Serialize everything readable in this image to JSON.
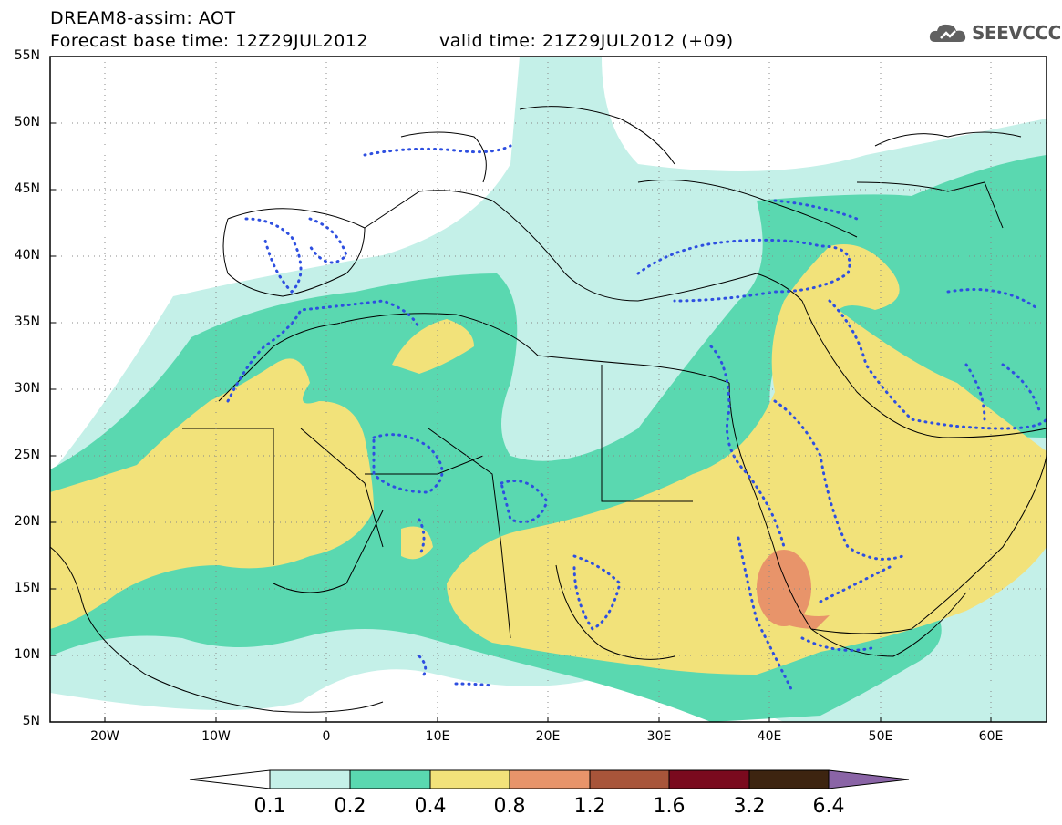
{
  "header": {
    "title": "DREAM8-assim: AOT",
    "base_time": "Forecast base time: 12Z29JUL2012",
    "valid_time": "valid time: 21Z29JUL2012 (+09)"
  },
  "brand": {
    "name": "SEEVCCC",
    "icon": "cloud-icon"
  },
  "map": {
    "lat_labels": [
      "55N",
      "50N",
      "45N",
      "40N",
      "35N",
      "30N",
      "25N",
      "20N",
      "15N",
      "10N",
      "5N"
    ],
    "lon_labels": [
      "20W",
      "10W",
      "0",
      "10E",
      "20E",
      "30E",
      "40E",
      "50E",
      "60E"
    ]
  },
  "colorbar": {
    "labels": [
      "0.1",
      "0.2",
      "0.4",
      "0.8",
      "1.2",
      "1.6",
      "3.2",
      "6.4"
    ],
    "colors": [
      "#ffffff",
      "#c4f0e8",
      "#5ad8b0",
      "#f2e27a",
      "#e8946a",
      "#a8553a",
      "#7a0a1e",
      "#3d2410",
      "#8a64a6"
    ]
  }
}
